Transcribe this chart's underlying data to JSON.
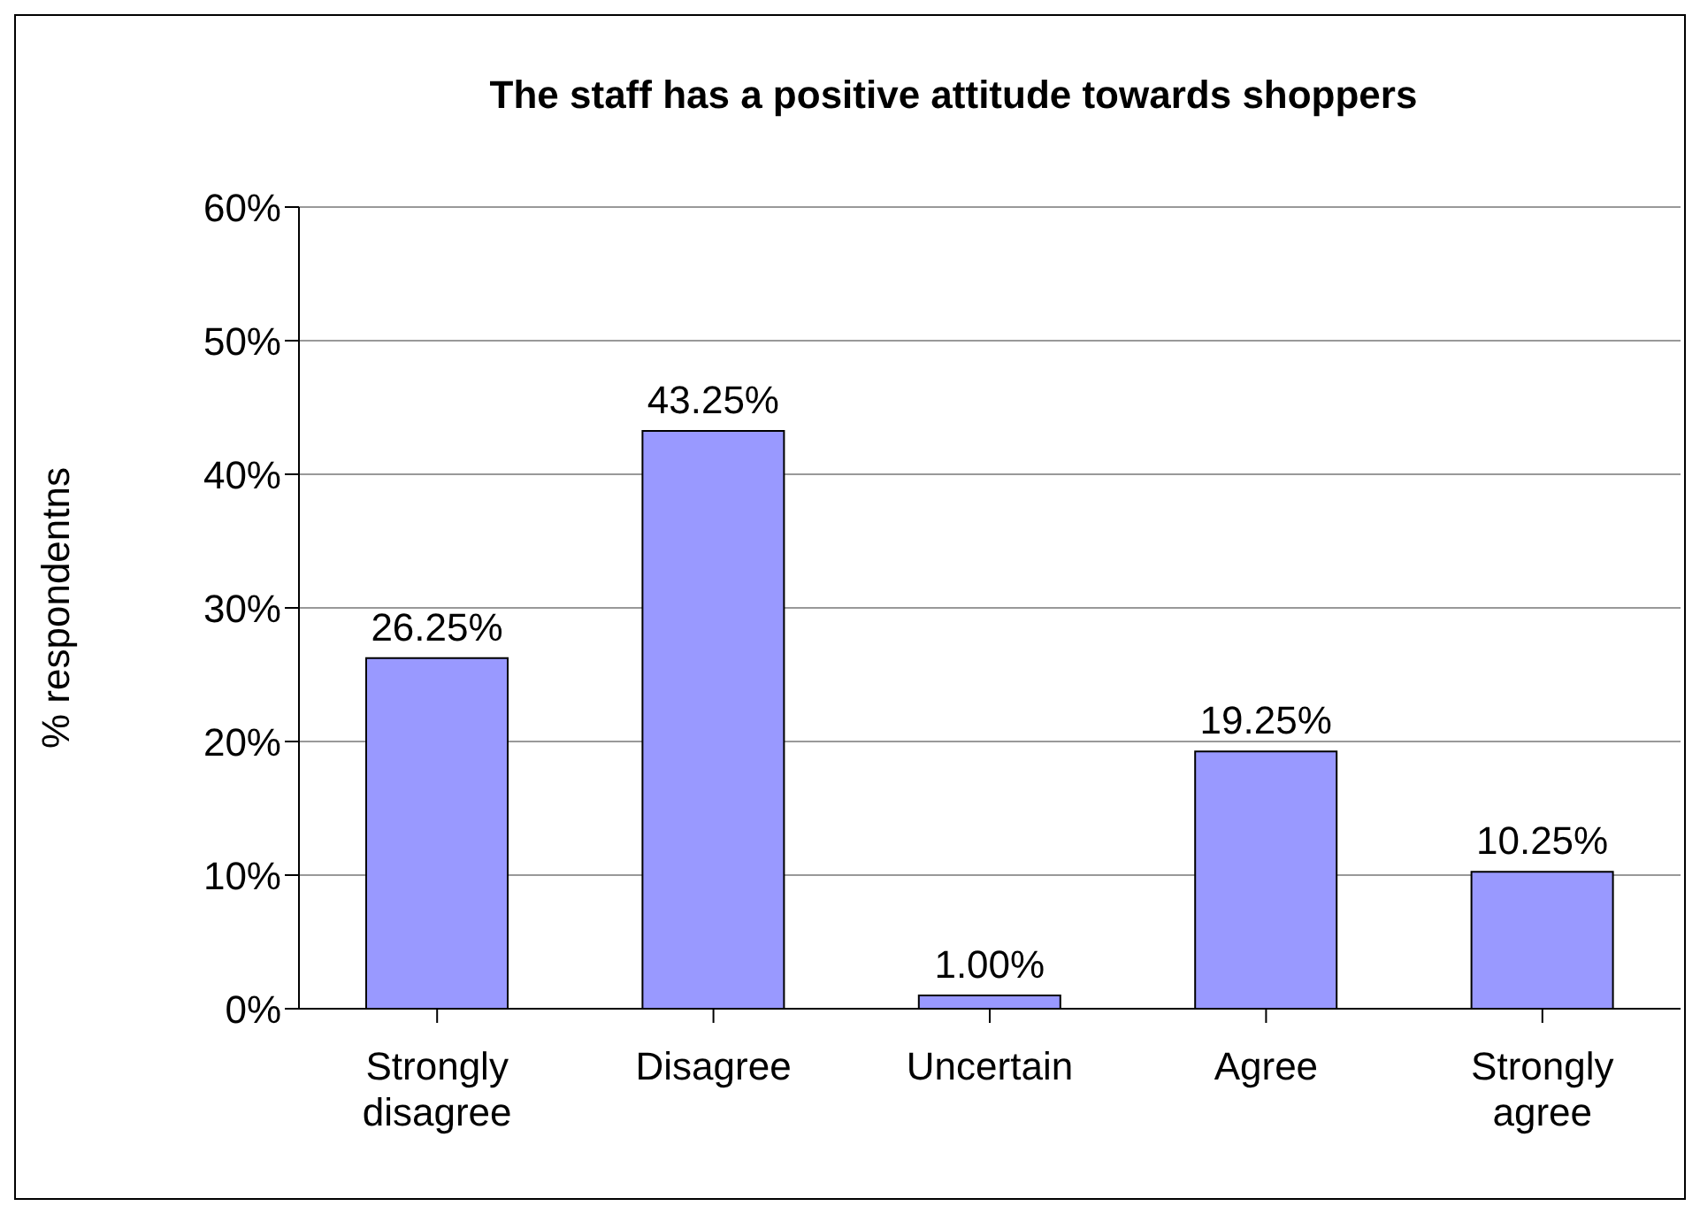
{
  "chart_data": {
    "type": "bar",
    "title": "The staff has a positive attitude towards shoppers",
    "ylabel": "% respondentns",
    "categories": [
      "Strongly disagree",
      "Disagree",
      "Uncertain",
      "Agree",
      "Strongly agree"
    ],
    "values": [
      26.25,
      43.25,
      1.0,
      19.25,
      10.25
    ],
    "value_labels": [
      "26.25%",
      "43.25%",
      "1.00%",
      "19.25%",
      "10.25%"
    ],
    "color": "#9999ff",
    "ylim": [
      0,
      60
    ],
    "yticks": [
      {
        "value": 0,
        "label": "0%"
      },
      {
        "value": 10,
        "label": "10%"
      },
      {
        "value": 20,
        "label": "20%"
      },
      {
        "value": 30,
        "label": "30%"
      },
      {
        "value": 40,
        "label": "40%"
      },
      {
        "value": 50,
        "label": "50%"
      },
      {
        "value": 60,
        "label": "60%"
      }
    ],
    "grid": "y"
  }
}
